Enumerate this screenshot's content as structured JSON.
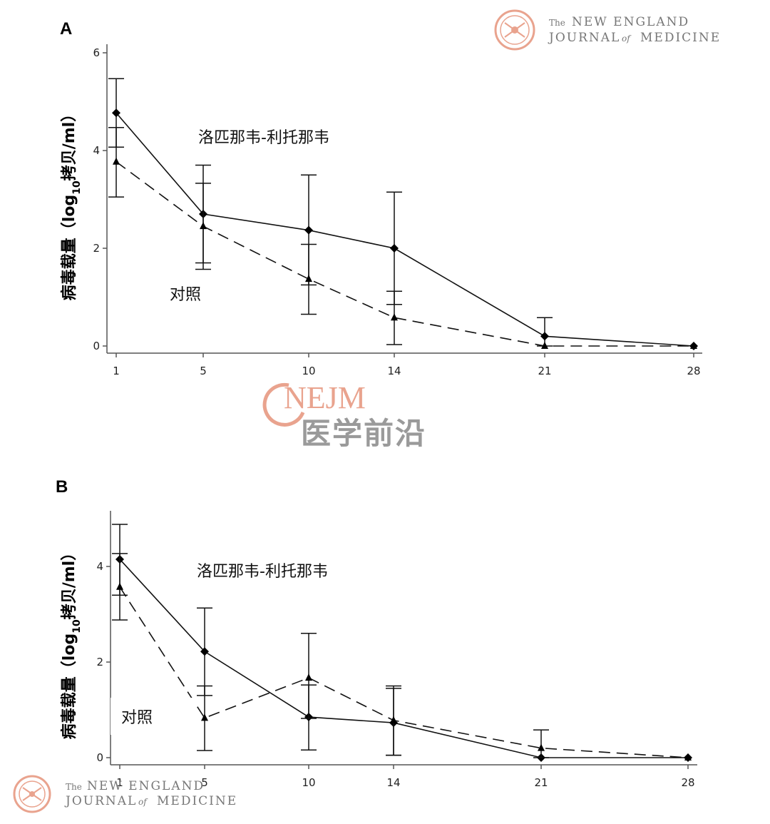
{
  "watermarks": {
    "journal_small": "The",
    "journal_line1": "NEW ENGLAND",
    "journal_line2_a": "JOURNAL",
    "journal_line2_of": "of",
    "journal_line2_b": "MEDICINE",
    "nejm": "NEJM",
    "nejm_cn": "医学前沿",
    "accent_color": "#e9a38e"
  },
  "chart_data": [
    {
      "type": "line",
      "panel": "A",
      "ylabel": "病毒载量（log10拷贝/ml）",
      "ylabel_main": "病毒载量（log",
      "ylabel_sub": "10",
      "ylabel_end": "拷贝/ml）",
      "x": [
        1,
        5,
        10,
        14,
        21,
        28
      ],
      "x_ticks": [
        "1",
        "5",
        "10",
        "14",
        "21",
        "28"
      ],
      "y_ticks": [
        "0",
        "2",
        "4",
        "6"
      ],
      "ylim": [
        0,
        6
      ],
      "series": [
        {
          "name": "洛匹那韦-利托那韦",
          "marker": "diamond",
          "line": "solid",
          "values": [
            4.77,
            2.7,
            2.37,
            2.0,
            0.2,
            0.0
          ],
          "error_low": [
            4.07,
            1.7,
            1.25,
            0.85,
            0.0,
            0.0
          ],
          "error_high": [
            5.47,
            3.7,
            3.5,
            3.15,
            0.58,
            0.0
          ]
        },
        {
          "name": "对照",
          "marker": "triangle",
          "line": "dashed",
          "values": [
            3.77,
            2.45,
            1.37,
            0.58,
            0.0,
            0.0
          ],
          "error_low": [
            3.05,
            1.57,
            0.65,
            0.03,
            0.0,
            0.0
          ],
          "error_high": [
            4.47,
            3.33,
            2.08,
            1.12,
            0.0,
            0.0
          ]
        }
      ]
    },
    {
      "type": "line",
      "panel": "B",
      "ylabel": "病毒载量（log10拷贝/ml）",
      "ylabel_main": "病毒载量（log",
      "ylabel_sub": "10",
      "ylabel_end": "拷贝/ml）",
      "x": [
        1,
        5,
        10,
        14,
        21,
        28
      ],
      "x_ticks": [
        "1",
        "5",
        "10",
        "14",
        "21",
        "28"
      ],
      "y_ticks": [
        "0",
        "2",
        "4"
      ],
      "ylim": [
        0,
        5.1
      ],
      "series": [
        {
          "name": "洛匹那韦-利托那韦",
          "marker": "diamond",
          "line": "solid",
          "values": [
            4.15,
            2.22,
            0.85,
            0.73,
            0.0,
            0.0
          ],
          "error_low": [
            3.4,
            1.3,
            0.16,
            0.05,
            0.0,
            0.0
          ],
          "error_high": [
            4.88,
            3.13,
            1.52,
            1.45,
            0.0,
            0.0
          ]
        },
        {
          "name": "对照",
          "marker": "triangle",
          "line": "dashed",
          "values": [
            3.57,
            0.83,
            1.67,
            0.78,
            0.2,
            0.0
          ],
          "error_low": [
            2.88,
            0.15,
            0.82,
            0.05,
            0.0,
            0.0
          ],
          "error_high": [
            4.27,
            1.5,
            2.6,
            1.5,
            0.58,
            0.0
          ]
        }
      ]
    }
  ]
}
